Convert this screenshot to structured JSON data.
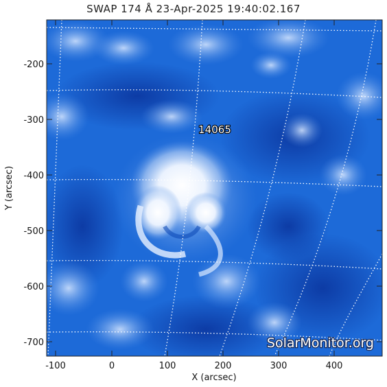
{
  "title": "SWAP 174 Å 23-Apr-2025 19:40:02.167",
  "axes": {
    "xlabel": "X (arcsec)",
    "ylabel": "Y (arcsec)",
    "x_ticks": [
      "-100",
      "0",
      "100",
      "200",
      "300",
      "400"
    ],
    "y_ticks": [
      "-200",
      "-300",
      "-400",
      "-500",
      "-600",
      "-700"
    ]
  },
  "active_region": {
    "label": "14065"
  },
  "watermark": "SolarMonitor.org",
  "colors": {
    "base": "#1a66d6",
    "dark": "#0b3aa8",
    "bright": "#ffffff"
  }
}
